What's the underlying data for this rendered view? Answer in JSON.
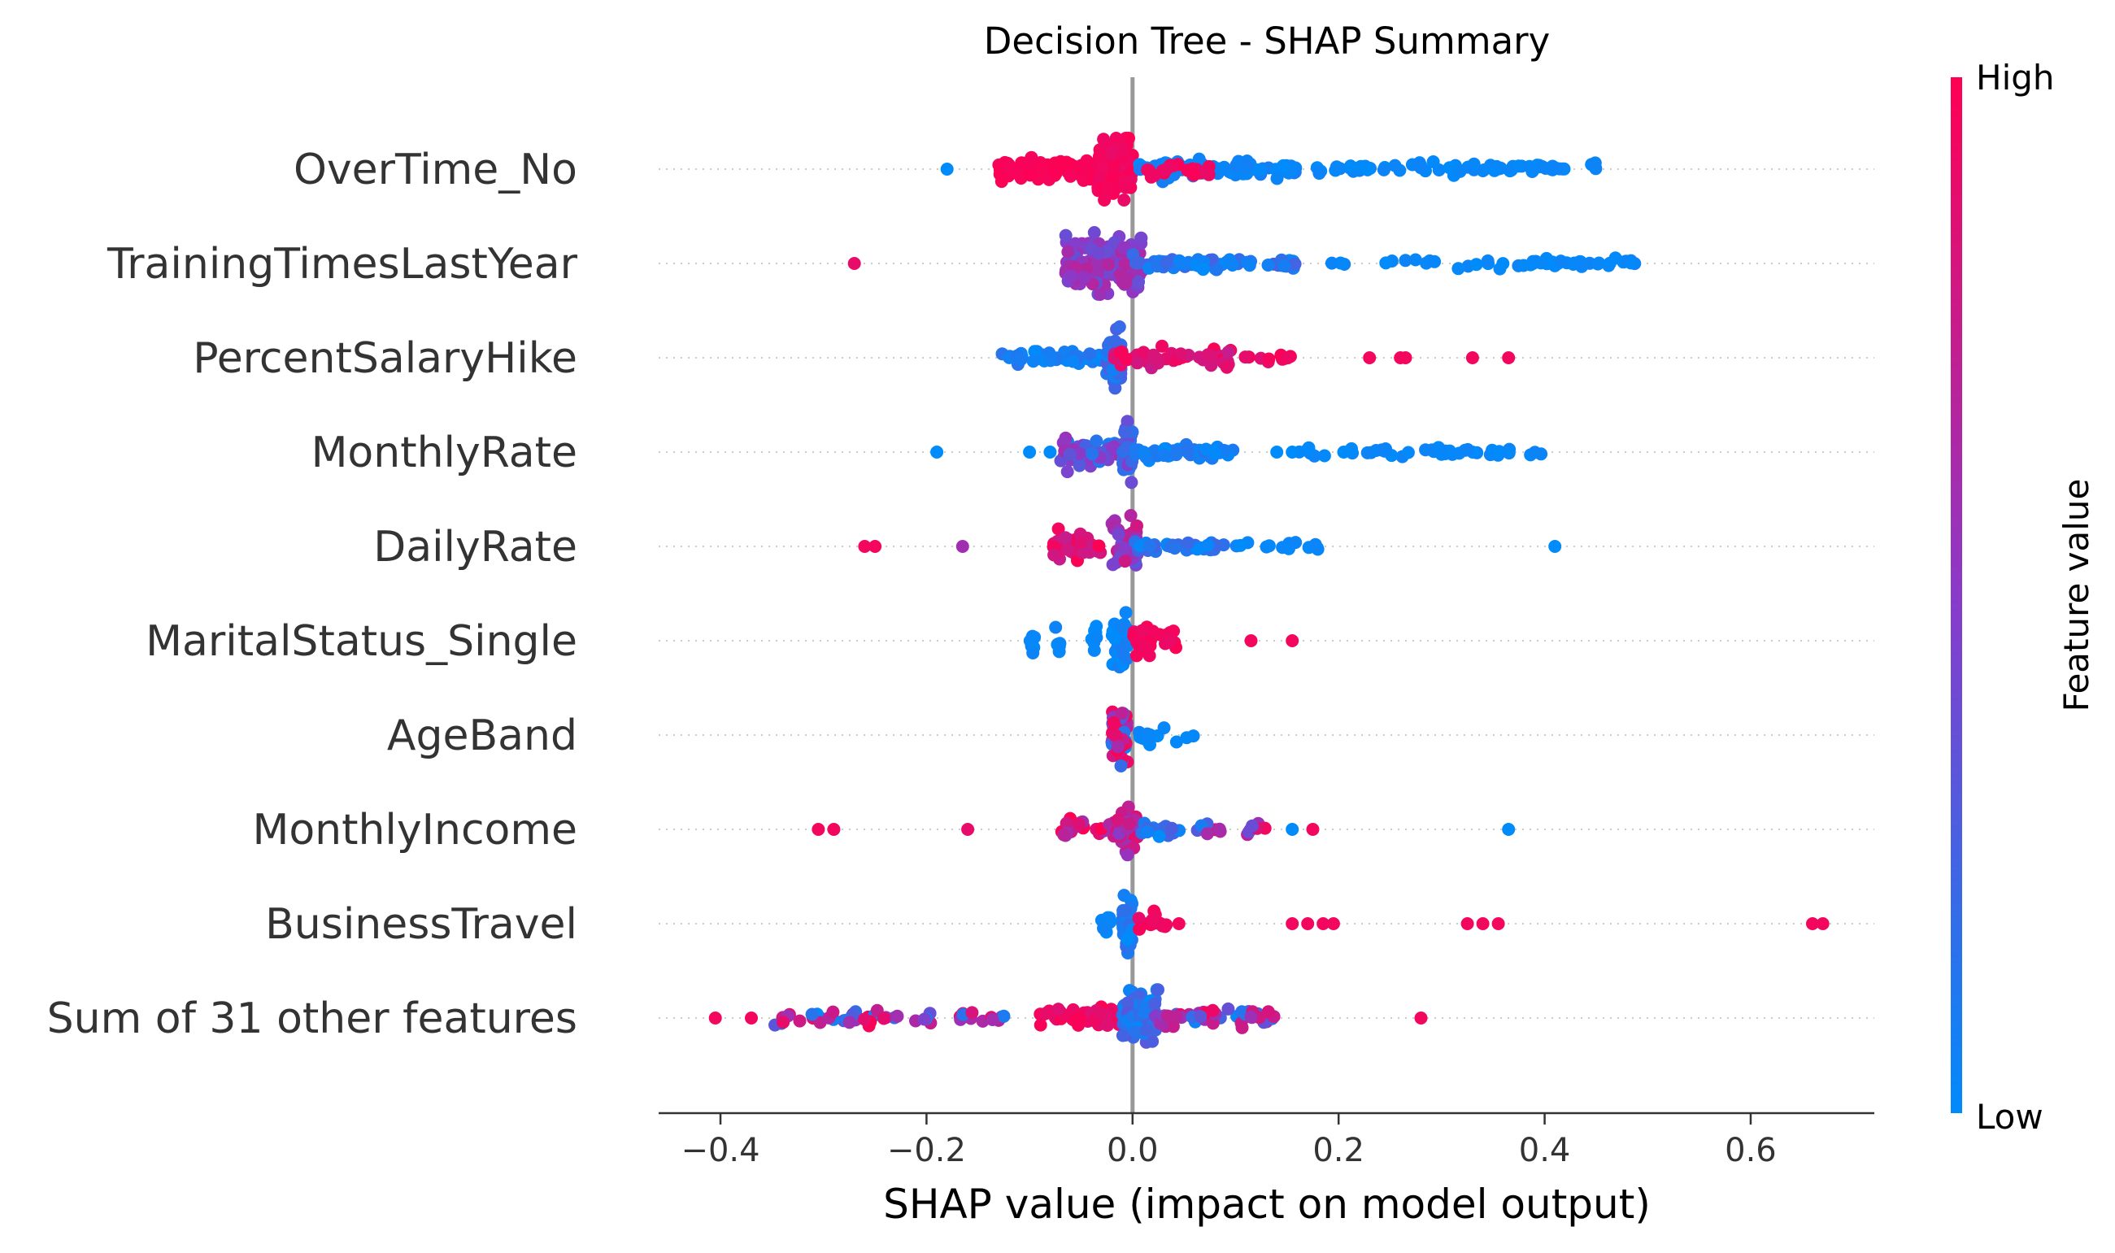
{
  "chart_data": {
    "type": "scatter",
    "subtype": "shap-beeswarm",
    "title": "Decision Tree - SHAP Summary",
    "xlabel": "SHAP value (impact on model output)",
    "ylabel": "",
    "xlim": [
      -0.46,
      0.72
    ],
    "xticks": [
      -0.4,
      -0.2,
      0.0,
      0.2,
      0.4,
      0.6
    ],
    "xtick_labels": [
      "−0.4",
      "−0.2",
      "0.0",
      "0.2",
      "0.4",
      "0.6"
    ],
    "grid": false,
    "colorbar": {
      "label": "Feature value",
      "high_label": "High",
      "low_label": "Low",
      "high_color": "#ff0052",
      "mid_color": "#8a3ac9",
      "low_color": "#008bfb"
    },
    "colors": {
      "zero_line": "#999999",
      "row_guide": "#cccccc",
      "axis": "#333333"
    },
    "features": [
      {
        "name": "OverTime_No",
        "clusters": [
          {
            "x": [
              -0.13,
              -0.01
            ],
            "n": 140,
            "v": [
              0.95,
              1.0
            ],
            "spread": 1.0
          },
          {
            "x": [
              -0.035,
              0.0
            ],
            "n": 110,
            "v": [
              0.9,
              1.0
            ],
            "spread": 2.6
          },
          {
            "x": [
              0.005,
              0.16
            ],
            "n": 80,
            "v": [
              0.0,
              0.1
            ],
            "spread": 0.8
          },
          {
            "x": [
              0.01,
              0.08
            ],
            "n": 18,
            "v": [
              0.9,
              1.0
            ],
            "spread": 0.8
          },
          {
            "x": [
              0.16,
              0.45
            ],
            "n": 70,
            "v": [
              0.0,
              0.05
            ],
            "spread": 0.5
          }
        ],
        "singles": [
          [
            -0.18,
            0.0
          ]
        ]
      },
      {
        "name": "TrainingTimesLastYear",
        "clusters": [
          {
            "x": [
              -0.065,
              0.01
            ],
            "n": 160,
            "v": [
              0.35,
              0.7
            ],
            "spread": 2.6
          },
          {
            "x": [
              0.0,
              0.16
            ],
            "n": 60,
            "v": [
              0.0,
              0.25
            ],
            "spread": 0.6
          },
          {
            "x": [
              0.19,
              0.49
            ],
            "n": 50,
            "v": [
              0.0,
              0.05
            ],
            "spread": 0.4
          }
        ],
        "singles": [
          [
            -0.27,
            0.9
          ]
        ]
      },
      {
        "name": "PercentSalaryHike",
        "clusters": [
          {
            "x": [
              -0.13,
              -0.02
            ],
            "n": 60,
            "v": [
              0.0,
              0.15
            ],
            "spread": 0.6
          },
          {
            "x": [
              -0.025,
              -0.01
            ],
            "n": 45,
            "v": [
              0.0,
              0.3
            ],
            "spread": 2.6
          },
          {
            "x": [
              -0.02,
              0.1
            ],
            "n": 50,
            "v": [
              0.75,
              1.0
            ],
            "spread": 0.8
          },
          {
            "x": [
              0.09,
              0.16
            ],
            "n": 10,
            "v": [
              0.85,
              1.0
            ],
            "spread": 0.4
          }
        ],
        "singles": [
          [
            0.23,
            0.95
          ],
          [
            0.26,
            0.95
          ],
          [
            0.265,
            0.95
          ],
          [
            0.33,
            0.95
          ],
          [
            0.365,
            0.95
          ]
        ]
      },
      {
        "name": "MonthlyRate",
        "clusters": [
          {
            "x": [
              -0.07,
              -0.005
            ],
            "n": 60,
            "v": [
              0.1,
              0.6
            ],
            "spread": 1.2
          },
          {
            "x": [
              -0.01,
              0.0
            ],
            "n": 40,
            "v": [
              0.1,
              0.5
            ],
            "spread": 2.6
          },
          {
            "x": [
              0.0,
              0.1
            ],
            "n": 55,
            "v": [
              0.0,
              0.15
            ],
            "spread": 0.6
          },
          {
            "x": [
              0.16,
              0.4
            ],
            "n": 45,
            "v": [
              0.0,
              0.05
            ],
            "spread": 0.4
          }
        ],
        "singles": [
          [
            -0.19,
            0.0
          ],
          [
            -0.1,
            0.0
          ],
          [
            -0.08,
            0.0
          ],
          [
            0.14,
            0.0
          ],
          [
            0.155,
            0.0
          ],
          [
            0.205,
            0.0
          ]
        ]
      },
      {
        "name": "DailyRate",
        "clusters": [
          {
            "x": [
              -0.08,
              -0.03
            ],
            "n": 35,
            "v": [
              0.75,
              1.0
            ],
            "spread": 1.2
          },
          {
            "x": [
              -0.02,
              0.005
            ],
            "n": 40,
            "v": [
              0.3,
              0.8
            ],
            "spread": 2.6
          },
          {
            "x": [
              0.0,
              0.09
            ],
            "n": 40,
            "v": [
              0.0,
              0.25
            ],
            "spread": 0.6
          },
          {
            "x": [
              0.09,
              0.18
            ],
            "n": 14,
            "v": [
              0.0,
              0.05
            ],
            "spread": 0.4
          }
        ],
        "singles": [
          [
            -0.26,
            0.95
          ],
          [
            -0.25,
            0.95
          ],
          [
            -0.165,
            0.6
          ],
          [
            0.41,
            0.0
          ]
        ]
      },
      {
        "name": "MaritalStatus_Single",
        "clusters": [
          {
            "x": [
              -0.1,
              -0.095
            ],
            "n": 8,
            "v": [
              0.0,
              0.05
            ],
            "spread": 1.2
          },
          {
            "x": [
              -0.075,
              -0.07
            ],
            "n": 6,
            "v": [
              0.0,
              0.05
            ],
            "spread": 1.2
          },
          {
            "x": [
              -0.04,
              -0.035
            ],
            "n": 8,
            "v": [
              0.0,
              0.05
            ],
            "spread": 1.6
          },
          {
            "x": [
              -0.02,
              -0.005
            ],
            "n": 30,
            "v": [
              0.0,
              0.1
            ],
            "spread": 2.6
          },
          {
            "x": [
              0.0,
              0.02
            ],
            "n": 18,
            "v": [
              0.9,
              1.0
            ],
            "spread": 1.6
          },
          {
            "x": [
              0.025,
              0.065
            ],
            "n": 12,
            "v": [
              0.9,
              1.0
            ],
            "spread": 1.2
          }
        ],
        "singles": [
          [
            0.115,
            0.95
          ],
          [
            0.155,
            0.95
          ]
        ]
      },
      {
        "name": "AgeBand",
        "clusters": [
          {
            "x": [
              -0.02,
              -0.005
            ],
            "n": 60,
            "v": [
              0.0,
              1.0
            ],
            "spread": 2.6
          },
          {
            "x": [
              0.005,
              0.06
            ],
            "n": 14,
            "v": [
              0.0,
              0.05
            ],
            "spread": 0.8
          }
        ],
        "singles": []
      },
      {
        "name": "MonthlyIncome",
        "clusters": [
          {
            "x": [
              -0.07,
              -0.015
            ],
            "n": 25,
            "v": [
              0.6,
              1.0
            ],
            "spread": 1.0
          },
          {
            "x": [
              -0.015,
              0.005
            ],
            "n": 45,
            "v": [
              0.5,
              1.0
            ],
            "spread": 2.6
          },
          {
            "x": [
              0.005,
              0.05
            ],
            "n": 16,
            "v": [
              0.0,
              0.3
            ],
            "spread": 0.8
          },
          {
            "x": [
              0.05,
              0.13
            ],
            "n": 14,
            "v": [
              0.0,
              1.0
            ],
            "spread": 0.6
          }
        ],
        "singles": [
          [
            -0.305,
            0.95
          ],
          [
            -0.29,
            0.95
          ],
          [
            -0.16,
            0.9
          ],
          [
            0.155,
            0.0
          ],
          [
            0.175,
            0.95
          ],
          [
            0.365,
            0.0
          ]
        ]
      },
      {
        "name": "BusinessTravel",
        "clusters": [
          {
            "x": [
              -0.03,
              -0.02
            ],
            "n": 10,
            "v": [
              0.0,
              0.05
            ],
            "spread": 1.2
          },
          {
            "x": [
              -0.01,
              0.0
            ],
            "n": 45,
            "v": [
              0.0,
              0.2
            ],
            "spread": 2.6
          },
          {
            "x": [
              0.005,
              0.035
            ],
            "n": 12,
            "v": [
              0.9,
              1.0
            ],
            "spread": 1.2
          }
        ],
        "singles": [
          [
            0.045,
            0.95
          ],
          [
            0.155,
            0.95
          ],
          [
            0.17,
            0.95
          ],
          [
            0.185,
            0.95
          ],
          [
            0.195,
            0.95
          ],
          [
            0.325,
            0.95
          ],
          [
            0.34,
            0.95
          ],
          [
            0.355,
            0.95
          ],
          [
            0.66,
            0.95
          ],
          [
            0.67,
            0.95
          ]
        ]
      },
      {
        "name": "Sum of 31 other features",
        "clusters": [
          {
            "x": [
              -0.35,
              -0.11
            ],
            "n": 50,
            "v": [
              0.0,
              1.0
            ],
            "spread": 0.6
          },
          {
            "x": [
              -0.09,
              -0.01
            ],
            "n": 45,
            "v": [
              0.85,
              1.0
            ],
            "spread": 1.0
          },
          {
            "x": [
              -0.01,
              0.025
            ],
            "n": 90,
            "v": [
              0.0,
              0.35
            ],
            "spread": 2.8
          },
          {
            "x": [
              0.02,
              0.14
            ],
            "n": 55,
            "v": [
              0.0,
              1.0
            ],
            "spread": 0.8
          }
        ],
        "singles": [
          [
            -0.405,
            0.95
          ],
          [
            -0.37,
            0.95
          ],
          [
            0.28,
            0.95
          ]
        ]
      }
    ]
  }
}
